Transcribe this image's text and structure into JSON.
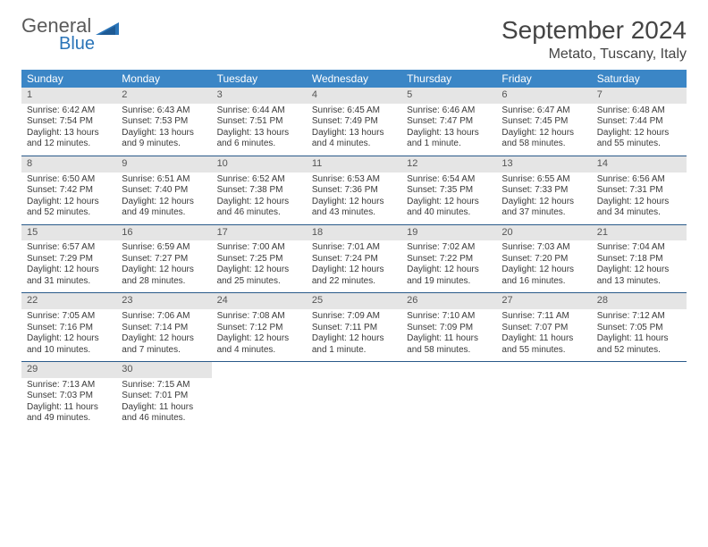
{
  "logo": {
    "word1": "General",
    "word2": "Blue"
  },
  "title": "September 2024",
  "location": "Metato, Tuscany, Italy",
  "colors": {
    "header_bg": "#3b86c6",
    "header_text": "#ffffff",
    "daynum_bg": "#e5e5e5",
    "daynum_text": "#555555",
    "body_text": "#3a3a3a",
    "row_border": "#2a5a8a",
    "logo_gray": "#5a5a5a",
    "logo_blue": "#2a74b8",
    "background": "#ffffff"
  },
  "typography": {
    "title_fontsize": 28,
    "location_fontsize": 16,
    "weekday_fontsize": 12,
    "daynum_fontsize": 11,
    "info_fontsize": 10
  },
  "weekdays": [
    "Sunday",
    "Monday",
    "Tuesday",
    "Wednesday",
    "Thursday",
    "Friday",
    "Saturday"
  ],
  "days": [
    {
      "n": "1",
      "sr": "Sunrise: 6:42 AM",
      "ss": "Sunset: 7:54 PM",
      "d1": "Daylight: 13 hours",
      "d2": "and 12 minutes."
    },
    {
      "n": "2",
      "sr": "Sunrise: 6:43 AM",
      "ss": "Sunset: 7:53 PM",
      "d1": "Daylight: 13 hours",
      "d2": "and 9 minutes."
    },
    {
      "n": "3",
      "sr": "Sunrise: 6:44 AM",
      "ss": "Sunset: 7:51 PM",
      "d1": "Daylight: 13 hours",
      "d2": "and 6 minutes."
    },
    {
      "n": "4",
      "sr": "Sunrise: 6:45 AM",
      "ss": "Sunset: 7:49 PM",
      "d1": "Daylight: 13 hours",
      "d2": "and 4 minutes."
    },
    {
      "n": "5",
      "sr": "Sunrise: 6:46 AM",
      "ss": "Sunset: 7:47 PM",
      "d1": "Daylight: 13 hours",
      "d2": "and 1 minute."
    },
    {
      "n": "6",
      "sr": "Sunrise: 6:47 AM",
      "ss": "Sunset: 7:45 PM",
      "d1": "Daylight: 12 hours",
      "d2": "and 58 minutes."
    },
    {
      "n": "7",
      "sr": "Sunrise: 6:48 AM",
      "ss": "Sunset: 7:44 PM",
      "d1": "Daylight: 12 hours",
      "d2": "and 55 minutes."
    },
    {
      "n": "8",
      "sr": "Sunrise: 6:50 AM",
      "ss": "Sunset: 7:42 PM",
      "d1": "Daylight: 12 hours",
      "d2": "and 52 minutes."
    },
    {
      "n": "9",
      "sr": "Sunrise: 6:51 AM",
      "ss": "Sunset: 7:40 PM",
      "d1": "Daylight: 12 hours",
      "d2": "and 49 minutes."
    },
    {
      "n": "10",
      "sr": "Sunrise: 6:52 AM",
      "ss": "Sunset: 7:38 PM",
      "d1": "Daylight: 12 hours",
      "d2": "and 46 minutes."
    },
    {
      "n": "11",
      "sr": "Sunrise: 6:53 AM",
      "ss": "Sunset: 7:36 PM",
      "d1": "Daylight: 12 hours",
      "d2": "and 43 minutes."
    },
    {
      "n": "12",
      "sr": "Sunrise: 6:54 AM",
      "ss": "Sunset: 7:35 PM",
      "d1": "Daylight: 12 hours",
      "d2": "and 40 minutes."
    },
    {
      "n": "13",
      "sr": "Sunrise: 6:55 AM",
      "ss": "Sunset: 7:33 PM",
      "d1": "Daylight: 12 hours",
      "d2": "and 37 minutes."
    },
    {
      "n": "14",
      "sr": "Sunrise: 6:56 AM",
      "ss": "Sunset: 7:31 PM",
      "d1": "Daylight: 12 hours",
      "d2": "and 34 minutes."
    },
    {
      "n": "15",
      "sr": "Sunrise: 6:57 AM",
      "ss": "Sunset: 7:29 PM",
      "d1": "Daylight: 12 hours",
      "d2": "and 31 minutes."
    },
    {
      "n": "16",
      "sr": "Sunrise: 6:59 AM",
      "ss": "Sunset: 7:27 PM",
      "d1": "Daylight: 12 hours",
      "d2": "and 28 minutes."
    },
    {
      "n": "17",
      "sr": "Sunrise: 7:00 AM",
      "ss": "Sunset: 7:25 PM",
      "d1": "Daylight: 12 hours",
      "d2": "and 25 minutes."
    },
    {
      "n": "18",
      "sr": "Sunrise: 7:01 AM",
      "ss": "Sunset: 7:24 PM",
      "d1": "Daylight: 12 hours",
      "d2": "and 22 minutes."
    },
    {
      "n": "19",
      "sr": "Sunrise: 7:02 AM",
      "ss": "Sunset: 7:22 PM",
      "d1": "Daylight: 12 hours",
      "d2": "and 19 minutes."
    },
    {
      "n": "20",
      "sr": "Sunrise: 7:03 AM",
      "ss": "Sunset: 7:20 PM",
      "d1": "Daylight: 12 hours",
      "d2": "and 16 minutes."
    },
    {
      "n": "21",
      "sr": "Sunrise: 7:04 AM",
      "ss": "Sunset: 7:18 PM",
      "d1": "Daylight: 12 hours",
      "d2": "and 13 minutes."
    },
    {
      "n": "22",
      "sr": "Sunrise: 7:05 AM",
      "ss": "Sunset: 7:16 PM",
      "d1": "Daylight: 12 hours",
      "d2": "and 10 minutes."
    },
    {
      "n": "23",
      "sr": "Sunrise: 7:06 AM",
      "ss": "Sunset: 7:14 PM",
      "d1": "Daylight: 12 hours",
      "d2": "and 7 minutes."
    },
    {
      "n": "24",
      "sr": "Sunrise: 7:08 AM",
      "ss": "Sunset: 7:12 PM",
      "d1": "Daylight: 12 hours",
      "d2": "and 4 minutes."
    },
    {
      "n": "25",
      "sr": "Sunrise: 7:09 AM",
      "ss": "Sunset: 7:11 PM",
      "d1": "Daylight: 12 hours",
      "d2": "and 1 minute."
    },
    {
      "n": "26",
      "sr": "Sunrise: 7:10 AM",
      "ss": "Sunset: 7:09 PM",
      "d1": "Daylight: 11 hours",
      "d2": "and 58 minutes."
    },
    {
      "n": "27",
      "sr": "Sunrise: 7:11 AM",
      "ss": "Sunset: 7:07 PM",
      "d1": "Daylight: 11 hours",
      "d2": "and 55 minutes."
    },
    {
      "n": "28",
      "sr": "Sunrise: 7:12 AM",
      "ss": "Sunset: 7:05 PM",
      "d1": "Daylight: 11 hours",
      "d2": "and 52 minutes."
    },
    {
      "n": "29",
      "sr": "Sunrise: 7:13 AM",
      "ss": "Sunset: 7:03 PM",
      "d1": "Daylight: 11 hours",
      "d2": "and 49 minutes."
    },
    {
      "n": "30",
      "sr": "Sunrise: 7:15 AM",
      "ss": "Sunset: 7:01 PM",
      "d1": "Daylight: 11 hours",
      "d2": "and 46 minutes."
    }
  ]
}
